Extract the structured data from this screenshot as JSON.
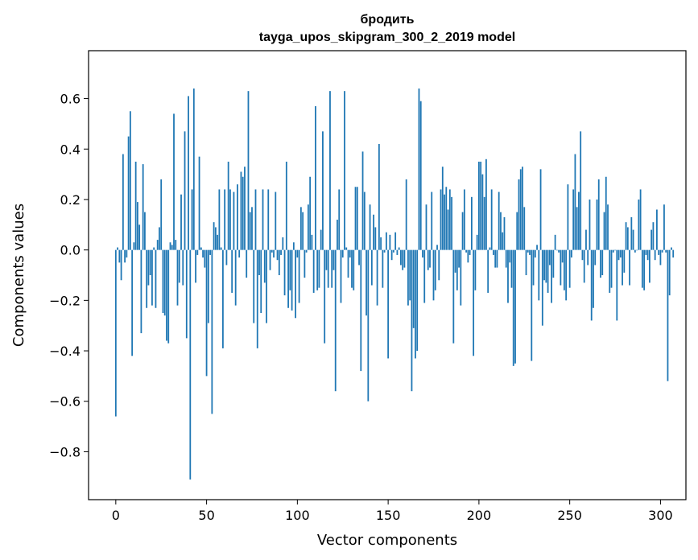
{
  "chart_data": {
    "type": "bar",
    "title_line1": "бродить",
    "title_line2": "tayga_upos_skipgram_300_2_2019 model",
    "xlabel": "Vector components",
    "ylabel": "Components values",
    "xlim": [
      -15,
      314
    ],
    "ylim": [
      -0.99,
      0.79
    ],
    "xticks": [
      {
        "value": 0,
        "label": "0"
      },
      {
        "value": 50,
        "label": "50"
      },
      {
        "value": 100,
        "label": "100"
      },
      {
        "value": 150,
        "label": "150"
      },
      {
        "value": 200,
        "label": "200"
      },
      {
        "value": 250,
        "label": "250"
      },
      {
        "value": 300,
        "label": "300"
      }
    ],
    "yticks": [
      {
        "value": 0.6,
        "label": "0.6"
      },
      {
        "value": 0.4,
        "label": "0.4"
      },
      {
        "value": 0.2,
        "label": "0.2"
      },
      {
        "value": 0.0,
        "label": "0.0"
      },
      {
        "value": -0.2,
        "label": "−0.2"
      },
      {
        "value": -0.4,
        "label": "−0.4"
      },
      {
        "value": -0.6,
        "label": "−0.6"
      },
      {
        "value": -0.8,
        "label": "−0.8"
      }
    ],
    "bar_color": "#1f77b4",
    "values": [
      -0.66,
      0.01,
      -0.05,
      -0.12,
      0.38,
      -0.05,
      -0.03,
      0.45,
      0.55,
      -0.42,
      0.03,
      0.35,
      0.19,
      0.1,
      -0.33,
      0.34,
      0.15,
      -0.23,
      -0.14,
      -0.1,
      -0.22,
      0.01,
      -0.23,
      0.04,
      0.09,
      0.28,
      -0.25,
      -0.26,
      -0.36,
      -0.37,
      0.03,
      0.02,
      0.54,
      0.04,
      -0.22,
      -0.13,
      0.22,
      -0.14,
      0.47,
      -0.35,
      0.61,
      -0.91,
      0.24,
      0.64,
      -0.13,
      -0.02,
      0.37,
      0.01,
      -0.03,
      -0.07,
      -0.5,
      -0.29,
      -0.02,
      -0.65,
      0.11,
      0.09,
      0.06,
      0.24,
      0.01,
      -0.39,
      0.24,
      -0.06,
      0.35,
      0.24,
      -0.17,
      0.23,
      -0.22,
      0.26,
      -0.03,
      0.31,
      0.29,
      0.33,
      -0.11,
      0.63,
      0.15,
      0.17,
      -0.29,
      0.24,
      -0.39,
      -0.1,
      -0.25,
      0.24,
      -0.13,
      -0.29,
      0.24,
      -0.08,
      -0.01,
      -0.03,
      0.23,
      -0.04,
      -0.1,
      -0.02,
      0.05,
      -0.18,
      0.35,
      -0.23,
      -0.16,
      -0.24,
      0.03,
      -0.27,
      -0.03,
      -0.21,
      0.17,
      0.15,
      -0.11,
      -0.01,
      0.18,
      0.29,
      0.06,
      -0.17,
      0.57,
      -0.16,
      -0.15,
      0.08,
      0.47,
      -0.37,
      -0.08,
      -0.15,
      0.63,
      -0.15,
      -0.08,
      -0.56,
      0.12,
      0.24,
      -0.21,
      -0.03,
      0.63,
      0.01,
      -0.11,
      -0.03,
      -0.15,
      -0.16,
      0.25,
      0.25,
      -0.06,
      -0.48,
      0.39,
      0.23,
      -0.26,
      -0.6,
      0.18,
      -0.14,
      0.14,
      0.09,
      -0.22,
      0.42,
      0.05,
      -0.15,
      -0.01,
      0.07,
      -0.43,
      0.06,
      -0.04,
      -0.01,
      0.07,
      -0.02,
      0.01,
      -0.06,
      -0.08,
      -0.07,
      0.28,
      -0.22,
      -0.2,
      -0.56,
      -0.31,
      -0.43,
      -0.4,
      0.64,
      0.59,
      -0.03,
      -0.21,
      0.18,
      -0.08,
      -0.07,
      0.23,
      -0.2,
      -0.16,
      0.02,
      -0.12,
      0.24,
      0.33,
      0.22,
      0.25,
      0.16,
      0.24,
      0.21,
      -0.37,
      -0.09,
      -0.16,
      -0.07,
      -0.22,
      0.15,
      0.24,
      -0.01,
      -0.05,
      -0.02,
      0.21,
      -0.42,
      -0.16,
      0.06,
      0.35,
      0.35,
      0.3,
      0.21,
      0.36,
      -0.17,
      0.01,
      0.24,
      -0.02,
      -0.07,
      -0.07,
      0.23,
      0.15,
      0.07,
      0.13,
      -0.07,
      -0.21,
      -0.05,
      -0.15,
      -0.46,
      -0.45,
      0.15,
      0.28,
      0.32,
      0.33,
      0.17,
      -0.1,
      -0.01,
      -0.02,
      -0.44,
      -0.14,
      -0.03,
      0.02,
      -0.2,
      0.32,
      -0.3,
      -0.12,
      -0.13,
      -0.17,
      -0.06,
      -0.21,
      -0.11,
      0.06,
      0.0,
      -0.01,
      -0.14,
      -0.05,
      -0.16,
      -0.2,
      0.26,
      -0.15,
      -0.03,
      0.24,
      0.38,
      0.17,
      0.23,
      0.47,
      -0.04,
      -0.13,
      0.08,
      -0.06,
      0.2,
      -0.28,
      -0.23,
      -0.06,
      0.2,
      0.28,
      -0.11,
      -0.1,
      0.15,
      0.29,
      0.18,
      -0.17,
      -0.15,
      -0.01,
      0.0,
      -0.28,
      -0.04,
      -0.03,
      -0.14,
      -0.09,
      0.11,
      0.09,
      -0.14,
      0.13,
      0.08,
      -0.01,
      0.0,
      0.2,
      0.24,
      -0.15,
      -0.16,
      -0.02,
      -0.04,
      -0.13,
      0.08,
      0.11,
      -0.04,
      0.16,
      -0.02,
      -0.06,
      -0.01,
      0.18,
      -0.01,
      -0.52,
      -0.18,
      0.01,
      -0.03
    ]
  }
}
